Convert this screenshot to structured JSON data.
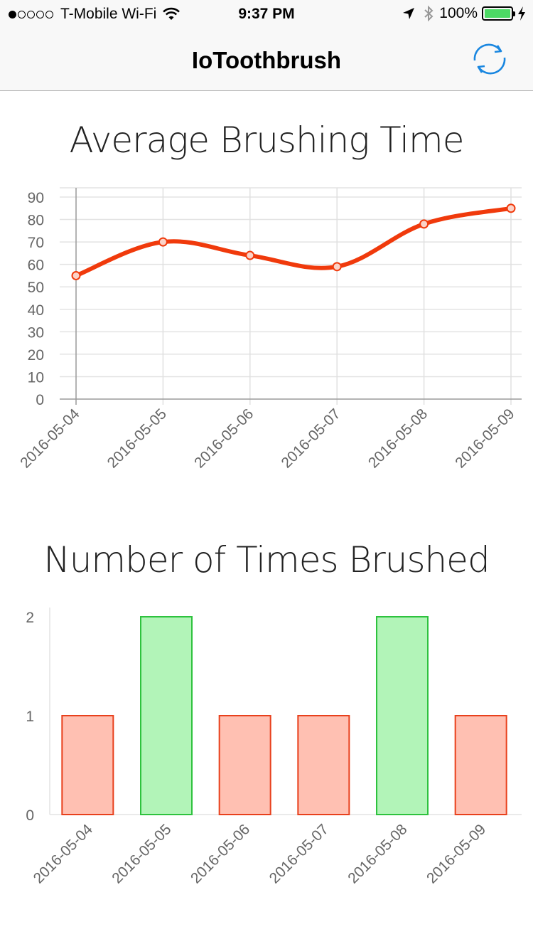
{
  "status_bar": {
    "carrier": "T-Mobile Wi-Fi",
    "time": "9:37 PM",
    "battery": "100%",
    "signal_filled": 1,
    "signal_total": 5
  },
  "nav": {
    "title": "IoToothbrush",
    "refresh_icon": "refresh-icon",
    "accent": "#1a87e0"
  },
  "charts": {
    "brushing_time": {
      "title": "Average Brushing Time"
    },
    "times_brushed": {
      "title": "Number of Times Brushed"
    }
  },
  "chart_data": [
    {
      "type": "line",
      "title": "Average Brushing Time",
      "categories": [
        "2016-05-04",
        "2016-05-05",
        "2016-05-06",
        "2016-05-07",
        "2016-05-08",
        "2016-05-09"
      ],
      "values": [
        55,
        70,
        64,
        59,
        78,
        85
      ],
      "yticks": [
        0,
        10,
        20,
        30,
        40,
        50,
        60,
        70,
        80,
        90
      ],
      "ylim": [
        0,
        90
      ],
      "grid": true,
      "line_color": "#f03a0c"
    },
    {
      "type": "bar",
      "title": "Number of Times Brushed",
      "categories": [
        "2016-05-04",
        "2016-05-05",
        "2016-05-06",
        "2016-05-07",
        "2016-05-08",
        "2016-05-09"
      ],
      "values": [
        1,
        2,
        1,
        1,
        2,
        1
      ],
      "yticks": [
        0,
        1,
        2
      ],
      "ylim": [
        0,
        2
      ],
      "grid": false,
      "colors": {
        "low_fill": "#ffc0b2",
        "low_border": "#e8401c",
        "high_fill": "#b2f4b8",
        "high_border": "#2ec23e"
      }
    }
  ]
}
